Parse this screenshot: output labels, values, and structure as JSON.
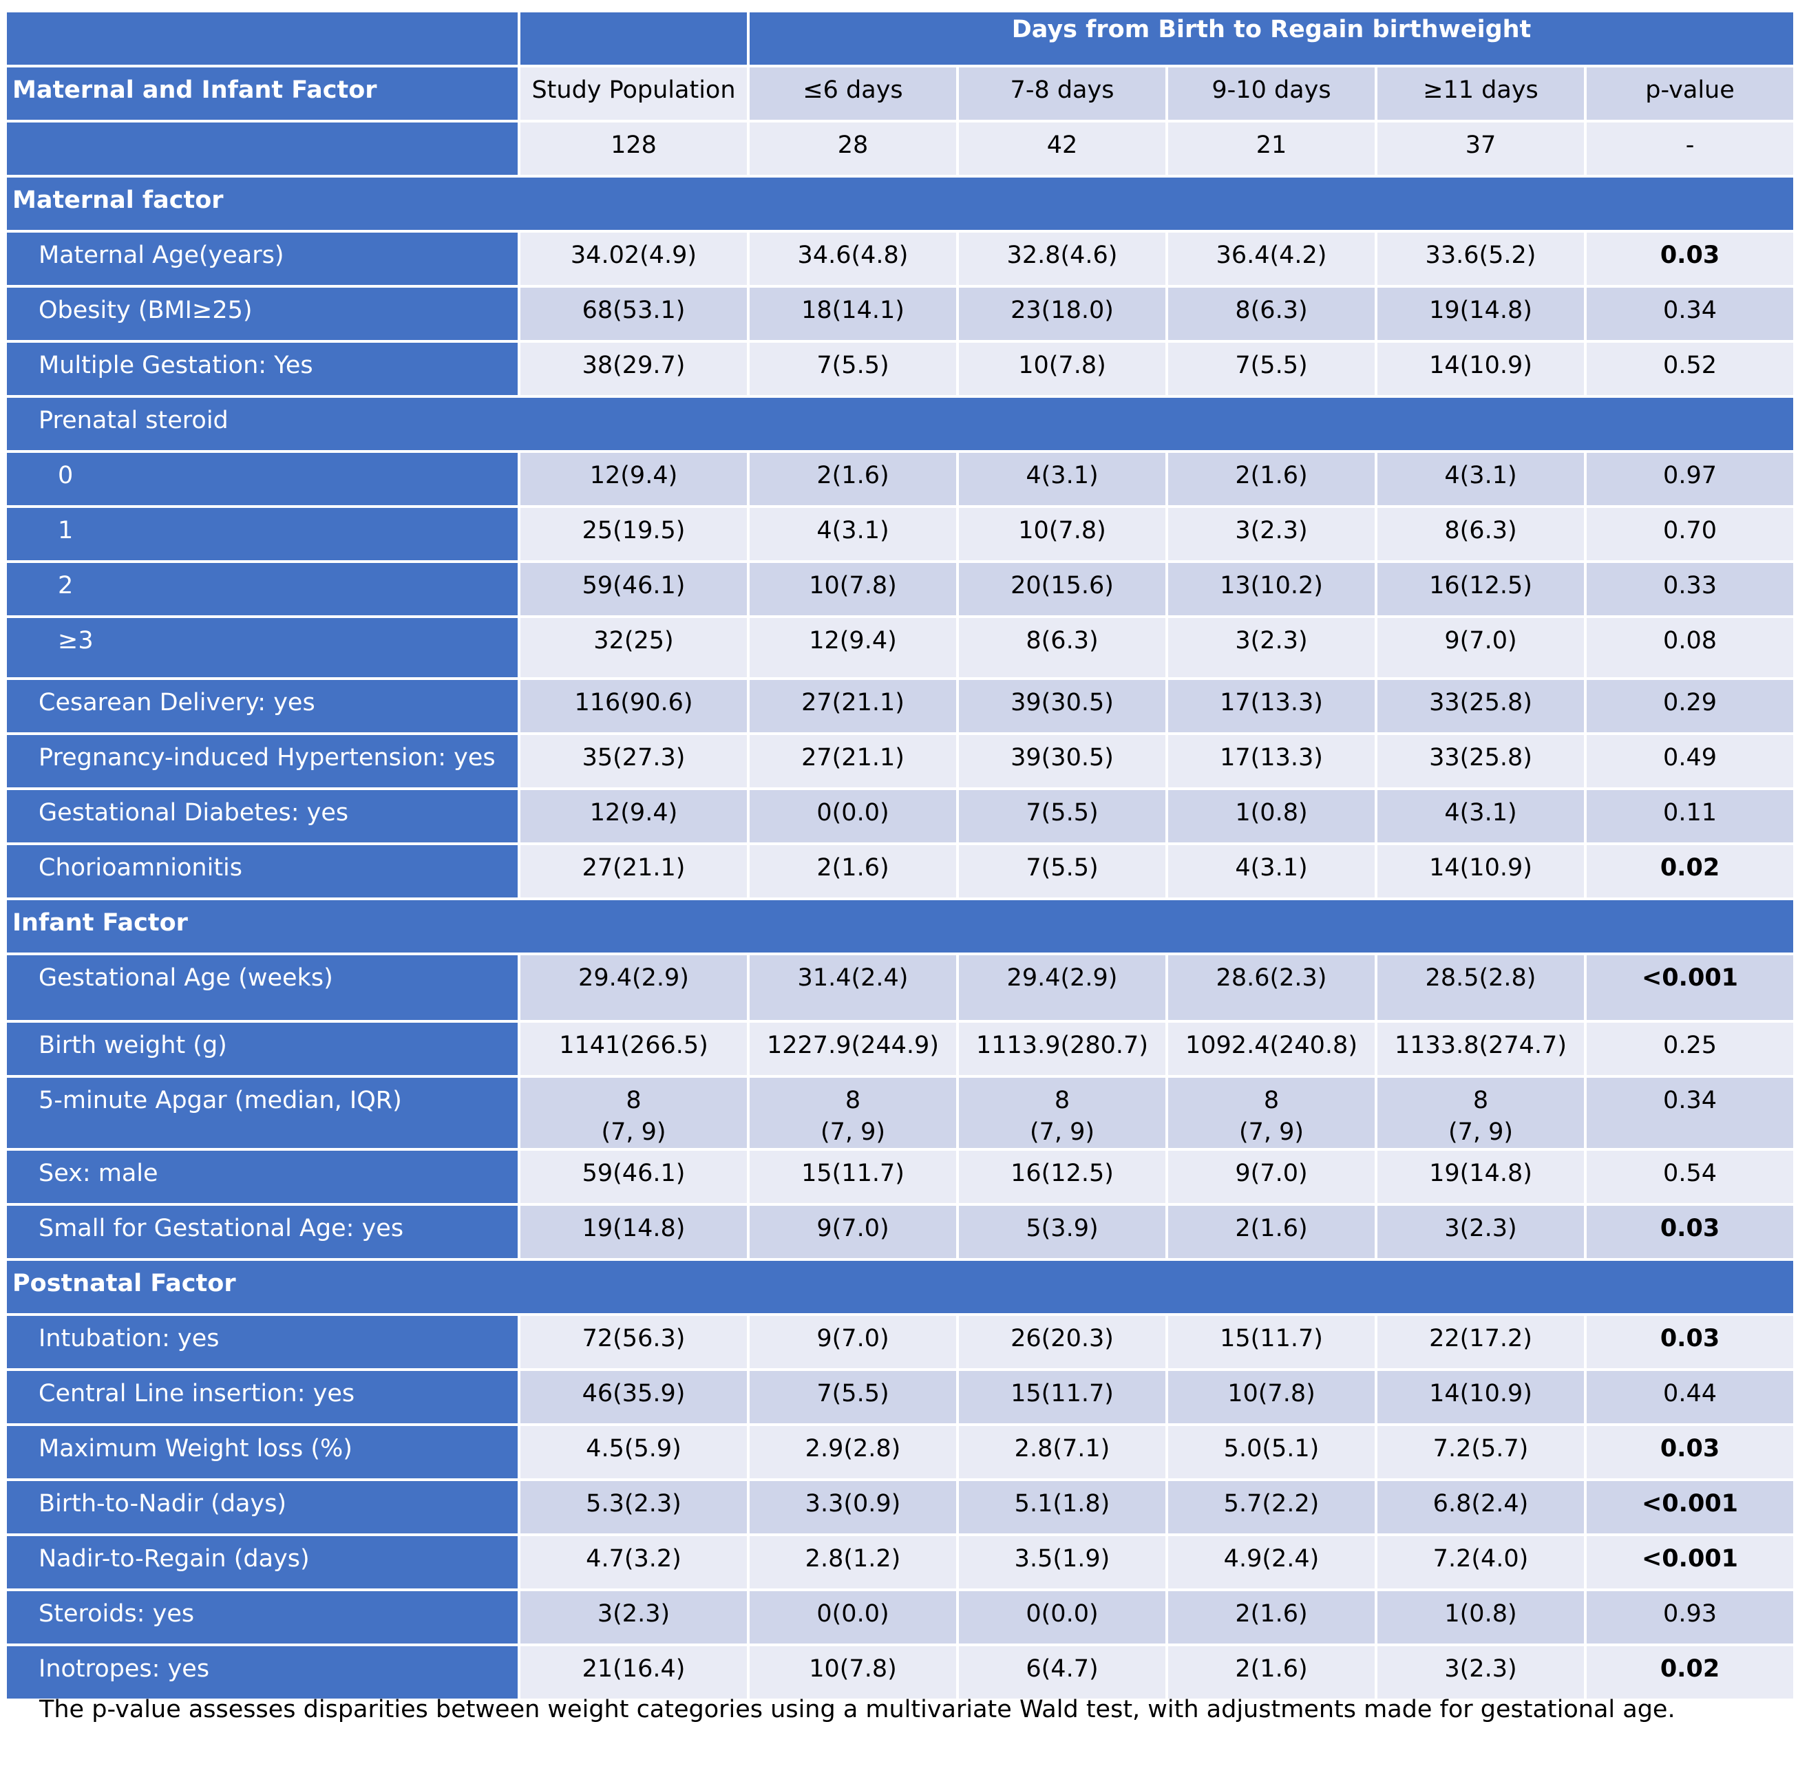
{
  "header": {
    "group_title": "Days from Birth to Regain birthweight",
    "first_col": "Maternal and Infant Factor",
    "columns": [
      "Study Population",
      "≤6 days",
      "7-8 days",
      "9-10 days",
      "≥11 days",
      "p-value"
    ],
    "n_row": [
      "128",
      "28",
      "42",
      "21",
      "37",
      "-"
    ]
  },
  "rows": [
    {
      "type": "section",
      "label": "Maternal factor"
    },
    {
      "label": "Maternal Age(years)",
      "values": [
        "34.02(4.9)",
        "34.6(4.8)",
        "32.8(4.6)",
        "36.4(4.2)",
        "33.6(5.2)",
        "0.03"
      ],
      "p_bold": true
    },
    {
      "label": "Obesity (BMI≥25)",
      "values": [
        "68(53.1)",
        "18(14.1)",
        "23(18.0)",
        "8(6.3)",
        "19(14.8)",
        "0.34"
      ],
      "p_bold": false
    },
    {
      "label": "Multiple Gestation: Yes",
      "values": [
        "38(29.7)",
        "7(5.5)",
        "10(7.8)",
        "7(5.5)",
        "14(10.9)",
        "0.52"
      ],
      "p_bold": false
    },
    {
      "type": "subhead",
      "label": "Prenatal steroid"
    },
    {
      "label": "0",
      "sub": true,
      "values": [
        "12(9.4)",
        "2(1.6)",
        "4(3.1)",
        "2(1.6)",
        "4(3.1)",
        "0.97"
      ],
      "p_bold": false
    },
    {
      "label": "1",
      "sub": true,
      "values": [
        "25(19.5)",
        "4(3.1)",
        "10(7.8)",
        "3(2.3)",
        "8(6.3)",
        "0.70"
      ],
      "p_bold": false
    },
    {
      "label": "2",
      "sub": true,
      "values": [
        "59(46.1)",
        "10(7.8)",
        "20(15.6)",
        "13(10.2)",
        "16(12.5)",
        "0.33"
      ],
      "p_bold": false
    },
    {
      "label": "≥3",
      "sub": true,
      "values": [
        "32(25)",
        "12(9.4)",
        "8(6.3)",
        "3(2.3)",
        "9(7.0)",
        "0.08"
      ],
      "p_bold": false
    },
    {
      "label": "Cesarean Delivery: yes",
      "values": [
        "116(90.6)",
        "27(21.1)",
        "39(30.5)",
        "17(13.3)",
        "33(25.8)",
        "0.29"
      ],
      "p_bold": false
    },
    {
      "label": "Pregnancy-induced Hypertension: yes",
      "values": [
        "35(27.3)",
        "27(21.1)",
        "39(30.5)",
        "17(13.3)",
        "33(25.8)",
        "0.49"
      ],
      "p_bold": false
    },
    {
      "label": "Gestational Diabetes: yes",
      "values": [
        "12(9.4)",
        "0(0.0)",
        "7(5.5)",
        "1(0.8)",
        "4(3.1)",
        "0.11"
      ],
      "p_bold": false
    },
    {
      "label": "Chorioamnionitis",
      "values": [
        "27(21.1)",
        "2(1.6)",
        "7(5.5)",
        "4(3.1)",
        "14(10.9)",
        "0.02"
      ],
      "p_bold": true
    },
    {
      "type": "section",
      "label": "Infant Factor"
    },
    {
      "label": "Gestational Age (weeks)",
      "values": [
        "29.4(2.9)",
        "31.4(2.4)",
        "29.4(2.9)",
        "28.6(2.3)",
        "28.5(2.8)",
        "<0.001"
      ],
      "p_bold": true
    },
    {
      "label": "Birth weight (g)",
      "values": [
        "1141(266.5)",
        "1227.9(244.9)",
        "1113.9(280.7)",
        "1092.4(240.8)",
        "1133.8(274.7)",
        "0.25"
      ],
      "p_bold": false
    },
    {
      "label": "5-minute Apgar (median, IQR)",
      "values": [
        "8\n(7, 9)",
        "8\n(7, 9)",
        "8\n(7, 9)",
        "8\n(7, 9)",
        "8\n(7, 9)",
        "0.34"
      ],
      "p_bold": false
    },
    {
      "label": "Sex: male",
      "values": [
        "59(46.1)",
        "15(11.7)",
        "16(12.5)",
        "9(7.0)",
        "19(14.8)",
        "0.54"
      ],
      "p_bold": false
    },
    {
      "label": "Small for Gestational Age: yes",
      "values": [
        "19(14.8)",
        "9(7.0)",
        "5(3.9)",
        "2(1.6)",
        "3(2.3)",
        "0.03"
      ],
      "p_bold": true
    },
    {
      "type": "section",
      "label": "Postnatal Factor"
    },
    {
      "label": "Intubation: yes",
      "values": [
        "72(56.3)",
        "9(7.0)",
        "26(20.3)",
        "15(11.7)",
        "22(17.2)",
        "0.03"
      ],
      "p_bold": true
    },
    {
      "label": "Central Line insertion: yes",
      "values": [
        "46(35.9)",
        "7(5.5)",
        "15(11.7)",
        "10(7.8)",
        "14(10.9)",
        "0.44"
      ],
      "p_bold": false
    },
    {
      "label": "Maximum Weight loss (%)",
      "values": [
        "4.5(5.9)",
        "2.9(2.8)",
        "2.8(7.1)",
        "5.0(5.1)",
        "7.2(5.7)",
        "0.03"
      ],
      "p_bold": true
    },
    {
      "label": "Birth-to-Nadir (days)",
      "values": [
        "5.3(2.3)",
        "3.3(0.9)",
        "5.1(1.8)",
        "5.7(2.2)",
        "6.8(2.4)",
        "<0.001"
      ],
      "p_bold": true
    },
    {
      "label": "Nadir-to-Regain (days)",
      "values": [
        "4.7(3.2)",
        "2.8(1.2)",
        "3.5(1.9)",
        "4.9(2.4)",
        "7.2(4.0)",
        "<0.001"
      ],
      "p_bold": true
    },
    {
      "label": "Steroids: yes",
      "values": [
        "3(2.3)",
        "0(0.0)",
        "0(0.0)",
        "2(1.6)",
        "1(0.8)",
        "0.93"
      ],
      "p_bold": false
    },
    {
      "label": "Inotropes: yes",
      "values": [
        "21(16.4)",
        "10(7.8)",
        "6(4.7)",
        "2(1.6)",
        "3(2.3)",
        "0.02"
      ],
      "p_bold": true
    }
  ],
  "footnote": "The p-value assesses disparities between weight categories using a multivariate Wald test, with adjustments made for gestational age.",
  "colors": {
    "header_blue": "#4472c4",
    "row_dark": "#cfd5ea",
    "row_light": "#e9ebf5"
  }
}
